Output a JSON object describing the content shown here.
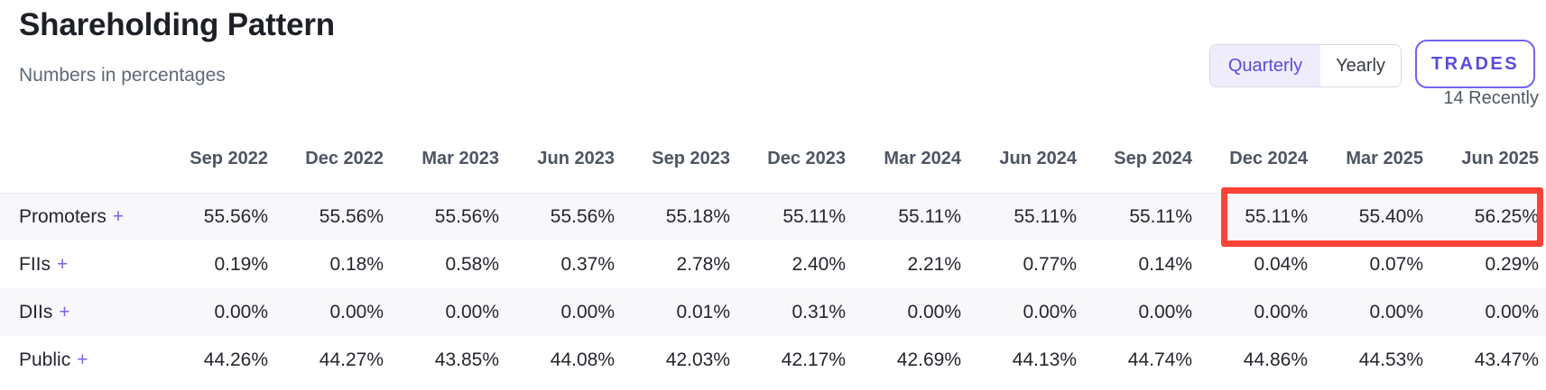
{
  "header": {
    "title": "Shareholding Pattern",
    "subtitle": "Numbers in percentages"
  },
  "controls": {
    "quarterly": "Quarterly",
    "yearly": "Yearly",
    "selected_period": "Quarterly",
    "trades": "TRADES",
    "recently": "14 Recently"
  },
  "colors": {
    "accent_purple": "#5a4be0",
    "accent_border": "#7263f2",
    "selected_segment_bg": "#efedfc",
    "highlight_red": "#fd4236",
    "stripe_row_bg": "#f8f8fb"
  },
  "table": {
    "expand_symbol": "+",
    "columns": [
      "Sep 2022",
      "Dec 2022",
      "Mar 2023",
      "Jun 2023",
      "Sep 2023",
      "Dec 2023",
      "Mar 2024",
      "Jun 2024",
      "Sep 2024",
      "Dec 2024",
      "Mar 2025",
      "Jun 2025"
    ],
    "rows": [
      {
        "label": "Promoters",
        "values": [
          "55.56%",
          "55.56%",
          "55.56%",
          "55.56%",
          "55.18%",
          "55.11%",
          "55.11%",
          "55.11%",
          "55.11%",
          "55.11%",
          "55.40%",
          "56.25%"
        ]
      },
      {
        "label": "FIIs",
        "values": [
          "0.19%",
          "0.18%",
          "0.58%",
          "0.37%",
          "2.78%",
          "2.40%",
          "2.21%",
          "0.77%",
          "0.14%",
          "0.04%",
          "0.07%",
          "0.29%"
        ]
      },
      {
        "label": "DIIs",
        "values": [
          "0.00%",
          "0.00%",
          "0.00%",
          "0.00%",
          "0.01%",
          "0.31%",
          "0.00%",
          "0.00%",
          "0.00%",
          "0.00%",
          "0.00%",
          "0.00%"
        ]
      },
      {
        "label": "Public",
        "values": [
          "44.26%",
          "44.27%",
          "43.85%",
          "44.08%",
          "42.03%",
          "42.17%",
          "42.69%",
          "44.13%",
          "44.74%",
          "44.86%",
          "44.53%",
          "43.47%"
        ]
      }
    ],
    "highlight": {
      "row": "Promoters",
      "columns": [
        "Dec 2024",
        "Mar 2025",
        "Jun 2025"
      ]
    }
  }
}
